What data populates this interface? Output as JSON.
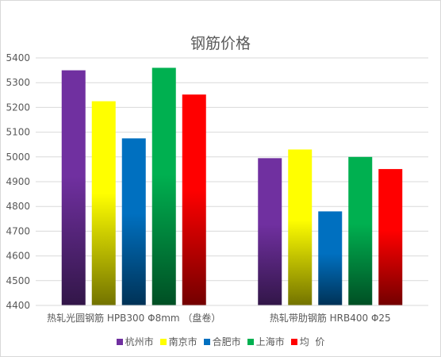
{
  "chart_data": {
    "type": "bar",
    "title": "钢筋价格",
    "categories": [
      "热轧光圆钢筋 HPB300 Φ8mm （盘卷）",
      "热轧带肋钢筋 HRB400 Φ25"
    ],
    "series": [
      {
        "name": "杭州市",
        "values": [
          5350,
          4995
        ],
        "color": "#7030a0"
      },
      {
        "name": "南京市",
        "values": [
          5225,
          5030
        ],
        "color": "#ffff00"
      },
      {
        "name": "合肥市",
        "values": [
          5075,
          4780
        ],
        "color": "#0070c0"
      },
      {
        "name": "上海市",
        "values": [
          5360,
          5000
        ],
        "color": "#00b050"
      },
      {
        "name": "均  价",
        "values": [
          5252,
          4951
        ],
        "color": "#ff0000"
      }
    ],
    "ylim": [
      4400,
      5400
    ],
    "yticks": [
      "4400",
      "4500",
      "4600",
      "4700",
      "4800",
      "4900",
      "5000",
      "5100",
      "5200",
      "5300",
      "5400"
    ],
    "grid": true,
    "legend_position": "bottom"
  }
}
